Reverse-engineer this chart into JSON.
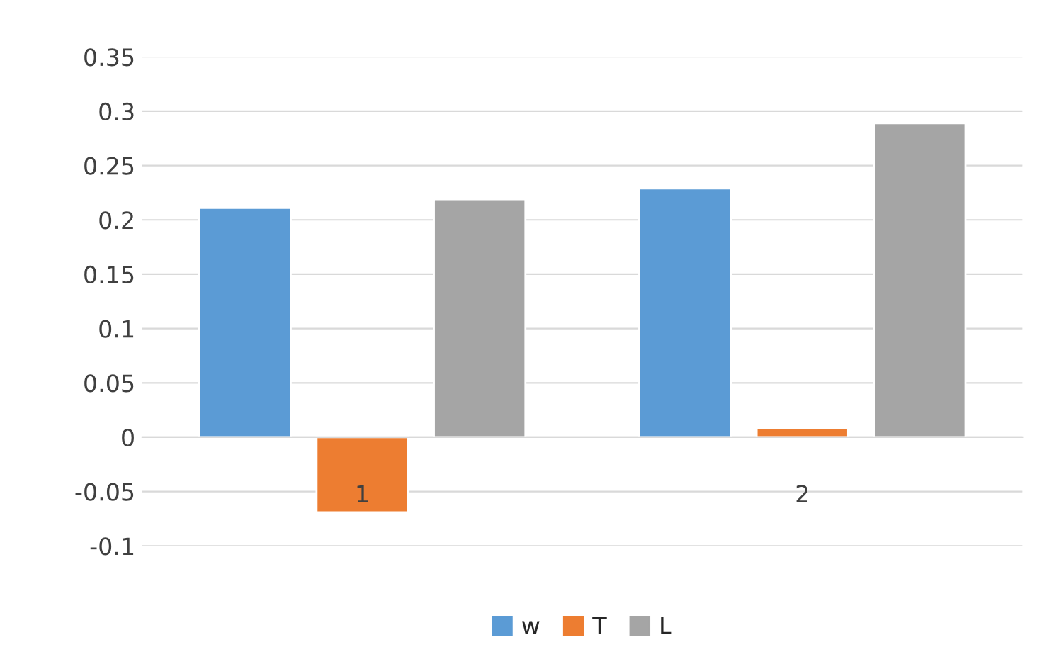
{
  "chart_data": {
    "type": "bar",
    "categories": [
      "1",
      "2"
    ],
    "series": [
      {
        "name": "w",
        "color": "#5b9bd5",
        "values": [
          0.211,
          0.229
        ]
      },
      {
        "name": "T",
        "color": "#ed7d31",
        "values": [
          -0.069,
          0.008
        ]
      },
      {
        "name": "L",
        "color": "#a5a5a5",
        "values": [
          0.219,
          0.289
        ]
      }
    ],
    "ylim": [
      -0.1,
      0.35
    ],
    "yticks": [
      -0.1,
      -0.05,
      0,
      0.05,
      0.1,
      0.15,
      0.2,
      0.25,
      0.3,
      0.35
    ],
    "grid": "y",
    "legend": "bottom"
  }
}
